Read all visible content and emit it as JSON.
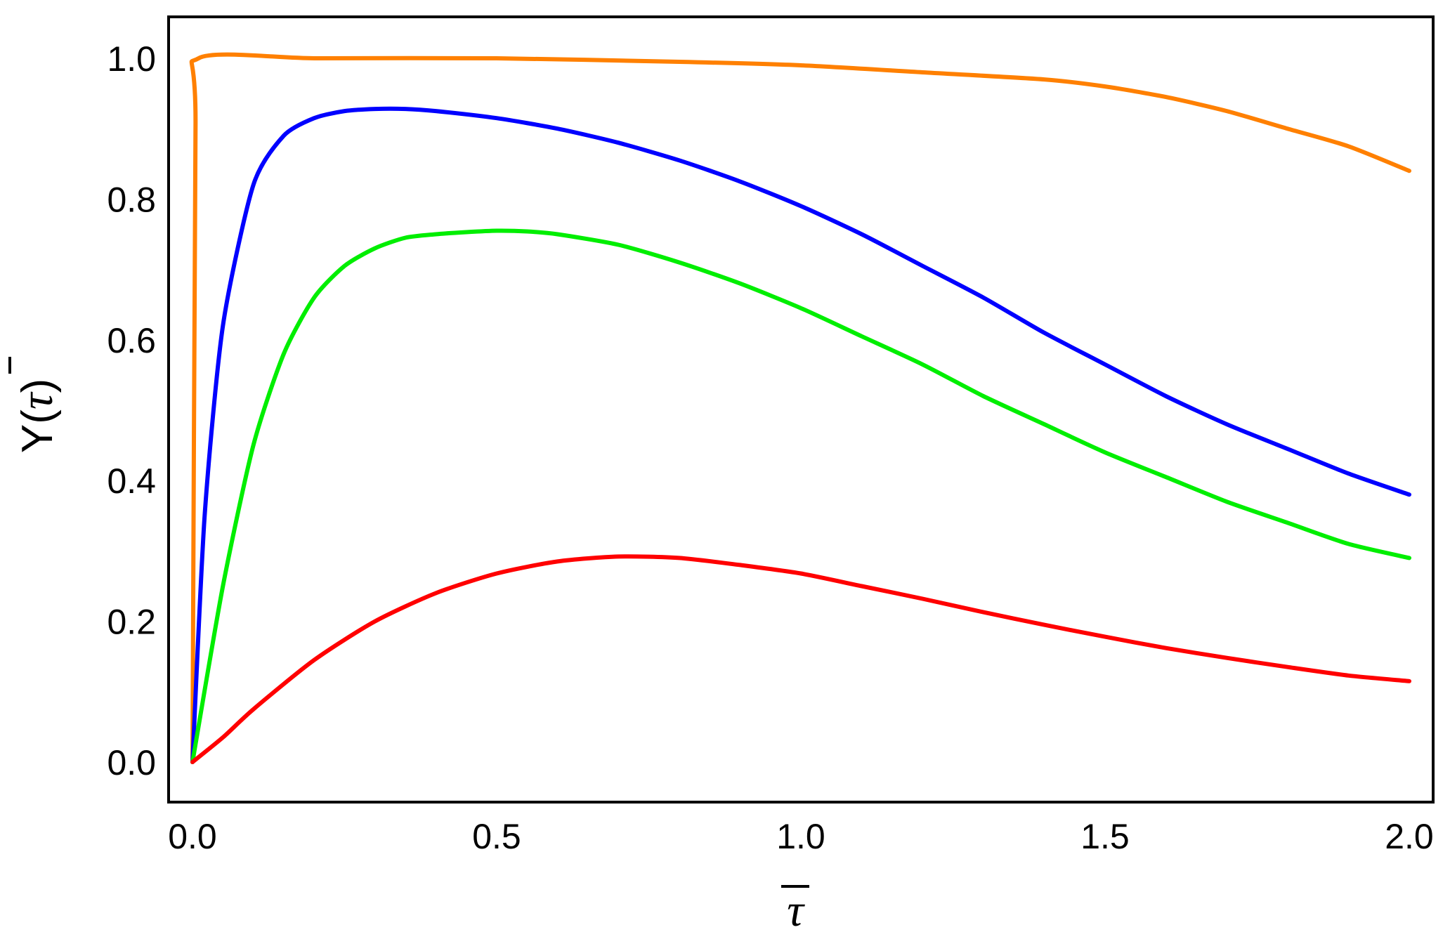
{
  "chart_data": {
    "type": "line",
    "title": "",
    "xlabel": "τ",
    "ylabel_prefix": "Y(",
    "ylabel_symbol": "τ",
    "ylabel_suffix": ")",
    "xlim": [
      0.0,
      2.0
    ],
    "ylim": [
      0.0,
      1.0
    ],
    "xticks": [
      "0.0",
      "0.5",
      "1.0",
      "1.5",
      "2.0"
    ],
    "yticks": [
      "0.0",
      "0.2",
      "0.4",
      "0.6",
      "0.8",
      "1.0"
    ],
    "grid": false,
    "legend": "none",
    "series": [
      {
        "color": "#ff8000",
        "x": [
          0.0,
          0.005,
          0.01,
          0.2,
          0.5,
          0.8,
          1.0,
          1.2,
          1.4,
          1.5,
          1.6,
          1.7,
          1.8,
          1.9,
          2.0
        ],
        "y": [
          0.0,
          0.9,
          1.0,
          1.0,
          1.0,
          0.995,
          0.99,
          0.98,
          0.97,
          0.96,
          0.945,
          0.925,
          0.9,
          0.875,
          0.84
        ]
      },
      {
        "color": "#0000ff",
        "x": [
          0.0,
          0.02,
          0.05,
          0.1,
          0.15,
          0.2,
          0.25,
          0.3,
          0.35,
          0.4,
          0.5,
          0.6,
          0.7,
          0.8,
          0.9,
          1.0,
          1.1,
          1.2,
          1.3,
          1.4,
          1.5,
          1.6,
          1.7,
          1.8,
          1.9,
          2.0
        ],
        "y": [
          0.0,
          0.35,
          0.62,
          0.82,
          0.89,
          0.915,
          0.925,
          0.928,
          0.928,
          0.925,
          0.915,
          0.9,
          0.88,
          0.855,
          0.825,
          0.79,
          0.75,
          0.705,
          0.66,
          0.61,
          0.565,
          0.52,
          0.48,
          0.445,
          0.41,
          0.38
        ]
      },
      {
        "color": "#00ee00",
        "x": [
          0.0,
          0.05,
          0.1,
          0.15,
          0.2,
          0.25,
          0.3,
          0.35,
          0.4,
          0.45,
          0.5,
          0.55,
          0.6,
          0.7,
          0.8,
          0.9,
          1.0,
          1.1,
          1.2,
          1.3,
          1.4,
          1.5,
          1.6,
          1.7,
          1.8,
          1.9,
          2.0
        ],
        "y": [
          0.0,
          0.25,
          0.45,
          0.58,
          0.66,
          0.705,
          0.73,
          0.745,
          0.75,
          0.753,
          0.755,
          0.754,
          0.75,
          0.735,
          0.71,
          0.68,
          0.645,
          0.605,
          0.565,
          0.52,
          0.48,
          0.44,
          0.405,
          0.37,
          0.34,
          0.31,
          0.29
        ]
      },
      {
        "color": "#ff0000",
        "x": [
          0.0,
          0.05,
          0.1,
          0.2,
          0.3,
          0.4,
          0.5,
          0.6,
          0.7,
          0.8,
          0.9,
          1.0,
          1.1,
          1.2,
          1.3,
          1.4,
          1.5,
          1.6,
          1.7,
          1.8,
          1.9,
          2.0
        ],
        "y": [
          0.0,
          0.035,
          0.075,
          0.145,
          0.2,
          0.24,
          0.268,
          0.285,
          0.292,
          0.29,
          0.28,
          0.268,
          0.25,
          0.232,
          0.213,
          0.195,
          0.178,
          0.162,
          0.148,
          0.135,
          0.123,
          0.115
        ]
      }
    ]
  }
}
